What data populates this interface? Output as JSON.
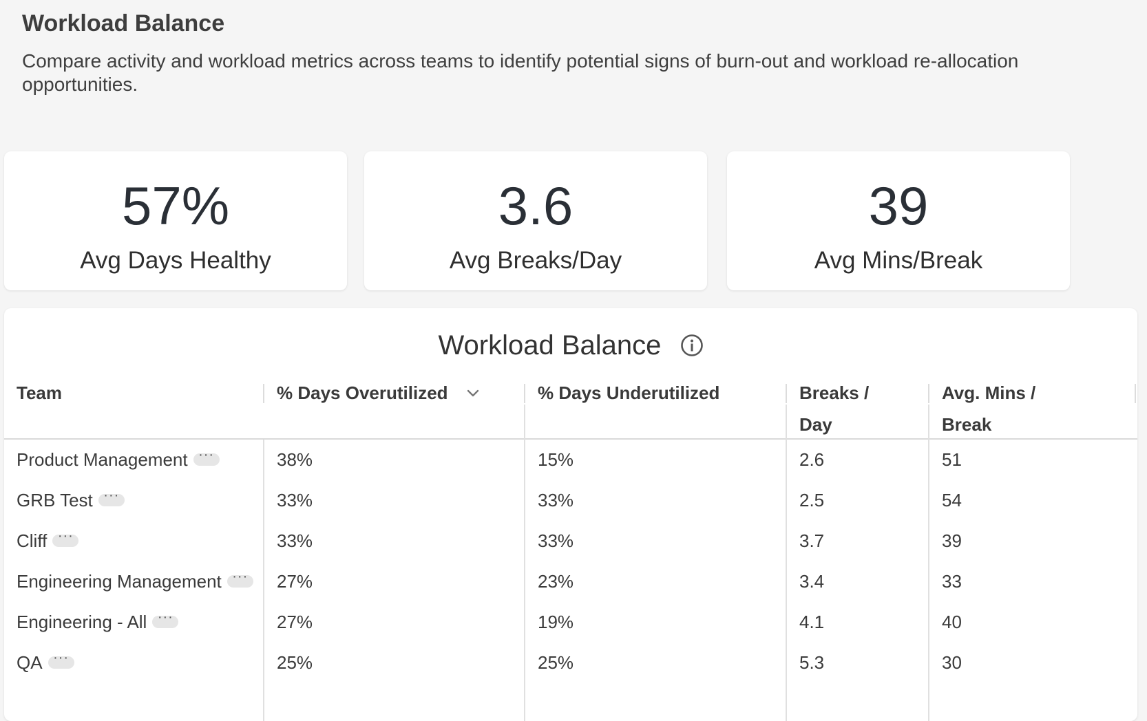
{
  "header": {
    "title": "Workload Balance",
    "description": "Compare activity and workload metrics across teams to identify potential signs of burn-out and workload re-allocation opportunities."
  },
  "kpis": [
    {
      "value": "57%",
      "label": "Avg Days Healthy"
    },
    {
      "value": "3.6",
      "label": "Avg Breaks/Day"
    },
    {
      "value": "39",
      "label": "Avg Mins/Break"
    }
  ],
  "table": {
    "title": "Workload Balance",
    "info_icon": "info-circle-icon",
    "sort_icon": "chevron-down-icon",
    "columns": [
      {
        "label": "Team"
      },
      {
        "label": "% Days Overutilized"
      },
      {
        "label": "% Days Underutilized"
      },
      {
        "label": "Breaks / Day"
      },
      {
        "label": "Avg. Mins / Break"
      }
    ],
    "rows": [
      {
        "team": "Product Management",
        "over": "38%",
        "under": "15%",
        "breaks": "2.6",
        "mins": "51"
      },
      {
        "team": "GRB Test",
        "over": "33%",
        "under": "33%",
        "breaks": "2.5",
        "mins": "54"
      },
      {
        "team": "Cliff",
        "over": "33%",
        "under": "33%",
        "breaks": "3.7",
        "mins": "39"
      },
      {
        "team": "Engineering Management",
        "over": "27%",
        "under": "23%",
        "breaks": "3.4",
        "mins": "33"
      },
      {
        "team": "Engineering - All",
        "over": "27%",
        "under": "19%",
        "breaks": "4.1",
        "mins": "40"
      },
      {
        "team": "QA",
        "over": "25%",
        "under": "25%",
        "breaks": "5.3",
        "mins": "30"
      }
    ]
  },
  "colors": {
    "background": "#f5f5f5",
    "card": "#ffffff",
    "text": "#3a3a3a",
    "kpi_value": "#2a2f36",
    "divider": "#d9d9d9"
  }
}
